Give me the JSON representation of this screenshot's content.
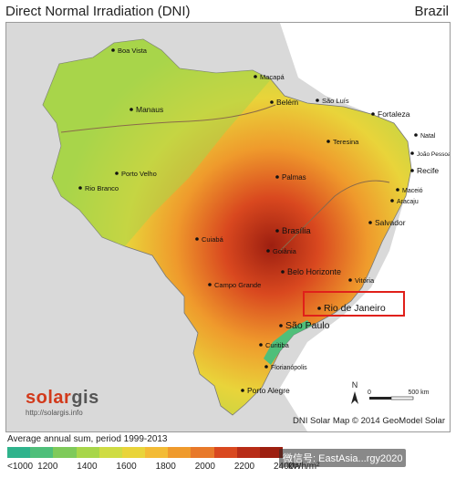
{
  "header": {
    "title": "Direct Normal Irradiation (DNI)",
    "country": "Brazil"
  },
  "map": {
    "cities": [
      {
        "name": "Boa Vista"
      },
      {
        "name": "Macapá"
      },
      {
        "name": "Manaus"
      },
      {
        "name": "Belém"
      },
      {
        "name": "São Luís"
      },
      {
        "name": "Fortaleza"
      },
      {
        "name": "Teresina"
      },
      {
        "name": "Natal"
      },
      {
        "name": "João Pessoa"
      },
      {
        "name": "Recife"
      },
      {
        "name": "Maceió"
      },
      {
        "name": "Aracaju"
      },
      {
        "name": "Porto Velho"
      },
      {
        "name": "Rio Branco"
      },
      {
        "name": "Palmas"
      },
      {
        "name": "Salvador"
      },
      {
        "name": "Brasília"
      },
      {
        "name": "Goiânia"
      },
      {
        "name": "Cuiabá"
      },
      {
        "name": "Belo Horizonte"
      },
      {
        "name": "Vitória"
      },
      {
        "name": "Campo Grande"
      },
      {
        "name": "Rio de Janeiro"
      },
      {
        "name": "São Paulo"
      },
      {
        "name": "Curitiba"
      },
      {
        "name": "Florianópolis"
      },
      {
        "name": "Porto Alegre"
      }
    ],
    "highlighted_city": "Rio de Janeiro",
    "highlight_color": "#e0201a",
    "scale_labels": [
      "0",
      "500 km"
    ],
    "compass_label": "N",
    "colors": {
      "low": "#4fbf7a",
      "green": "#a8d64a",
      "yellow": "#e9d43a",
      "orange": "#ef9a2c",
      "high": "#d9481f",
      "peak": "#9d1f10",
      "ocean": "#ffffff",
      "neighbor": "#d9d9d9"
    }
  },
  "logo": {
    "brand": "solar",
    "brand_suffix": "gis",
    "url": "http://solargis.info"
  },
  "credit": "DNI Solar Map © 2014 GeoModel Solar",
  "legend": {
    "title": "Average annual sum, period 1999-2013",
    "labels": [
      "<1000",
      "1200",
      "1400",
      "1600",
      "1800",
      "2000",
      "2200",
      "2400>"
    ],
    "unit": "kWh/m²",
    "colors": [
      "#2fb38c",
      "#4fbf7a",
      "#7fca5a",
      "#a8d64a",
      "#cfdc43",
      "#e9d43a",
      "#f3bb35",
      "#ef9a2c",
      "#e8792a",
      "#d9481f",
      "#b82c17",
      "#9d1f10"
    ]
  },
  "watermark": "微信号: EastAsia...rgy2020"
}
